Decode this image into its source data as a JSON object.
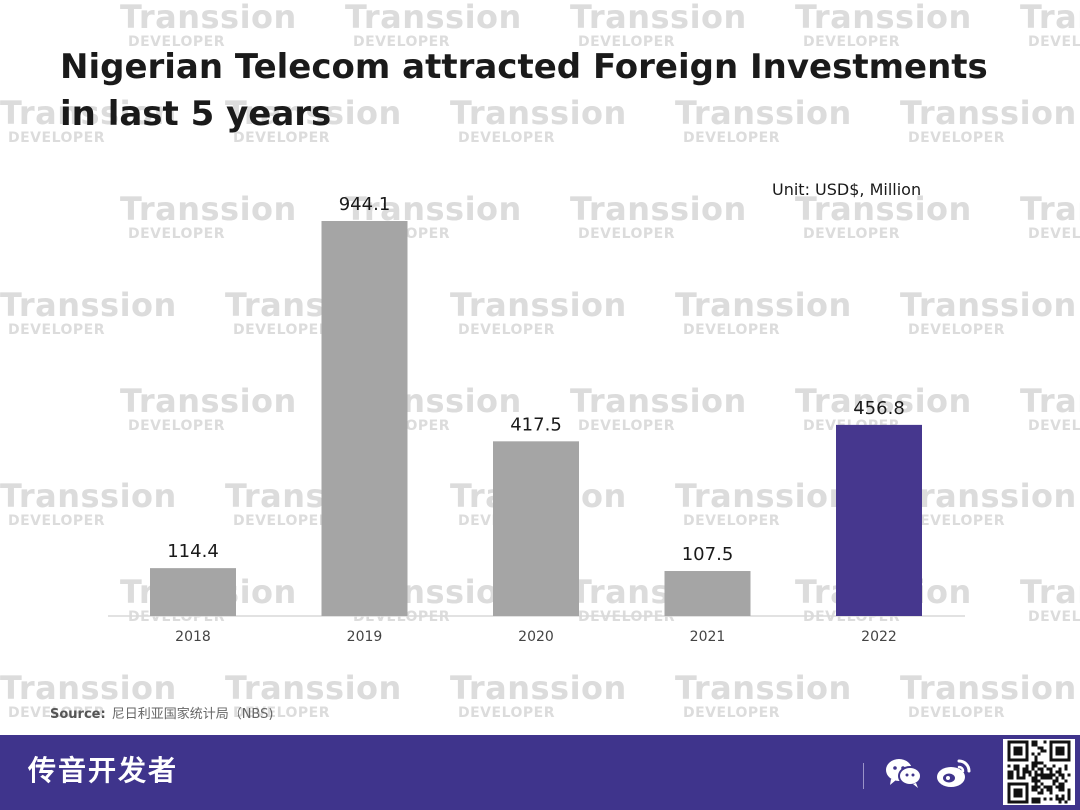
{
  "title": "Nigerian Telecom attracted Foreign Investments in last 5 years",
  "unit": "Unit: USD$, Million",
  "watermark": {
    "word": "Transsion",
    "sub": "DEVELOPER"
  },
  "source": {
    "label": "Source:",
    "text": "尼日利亚国家统计局（NBS)"
  },
  "footer": {
    "brand": "传音开发者",
    "icons": [
      "wechat-icon",
      "weibo-icon",
      "qr-code-icon"
    ]
  },
  "colors": {
    "bar": "#a5a5a5",
    "highlight": "#46378e",
    "footer": "#3f348c"
  },
  "chart_data": {
    "type": "bar",
    "categories": [
      "2018",
      "2019",
      "2020",
      "2021",
      "2022"
    ],
    "values": [
      114.4,
      944.1,
      417.5,
      107.5,
      456.8
    ],
    "labels": [
      "114.4",
      "944.1",
      "417.5",
      "107.5",
      "456.8"
    ],
    "highlight_index": 4,
    "title": "Nigerian Telecom attracted Foreign Investments in last 5 years",
    "ylabel": "",
    "xlabel": "",
    "ylim": [
      0,
      1000
    ],
    "grid": false,
    "legend": "none"
  }
}
